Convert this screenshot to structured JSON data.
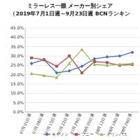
{
  "chart_data": {
    "type": "line",
    "title": "ミラーレス一眼 メーカー別シェア",
    "subtitle": "（2019年7月1日週～9月23日週 BCNランキン",
    "categories": [
      "07月01日週",
      "07月08日週",
      "07月15日週",
      "07月22日週",
      "07月29日週",
      "08月05日週",
      "08月12日週",
      "08月19日週",
      "08月26日週"
    ],
    "series": [
      {
        "name": "キヤノン",
        "color": "#4472c4",
        "marker": "diamond",
        "values": [
          26,
          28,
          21,
          22,
          24.5,
          28.5,
          29.5,
          30,
          32
        ]
      },
      {
        "name": "ソニー",
        "color": "#c0504d",
        "marker": "square",
        "values": [
          29,
          28,
          24.5,
          30,
          21,
          27,
          26.5,
          25,
          25.5
        ]
      },
      {
        "name": "オリンパス",
        "color": "#9bbb59",
        "marker": "triangle",
        "values": [
          20.5,
          19.5,
          18.5,
          26,
          33.5,
          25.5,
          25,
          25.5,
          26
        ]
      }
    ],
    "ylim": [
      0,
      45
    ],
    "yticks": [
      {
        "value": 0,
        "label": "0.0%"
      },
      {
        "value": 5,
        "label": "5.0%"
      },
      {
        "value": 10,
        "label": "10.0%"
      },
      {
        "value": 15,
        "label": "15.0%"
      },
      {
        "value": 20,
        "label": "20.0%"
      },
      {
        "value": 25,
        "label": "25.0%"
      },
      {
        "value": 30,
        "label": "30.0%"
      },
      {
        "value": 35,
        "label": "35.0%"
      },
      {
        "value": 40,
        "label": "40.0%"
      },
      {
        "value": 45,
        "label": "45.0%"
      }
    ],
    "grid": true,
    "legend": "bottom"
  }
}
